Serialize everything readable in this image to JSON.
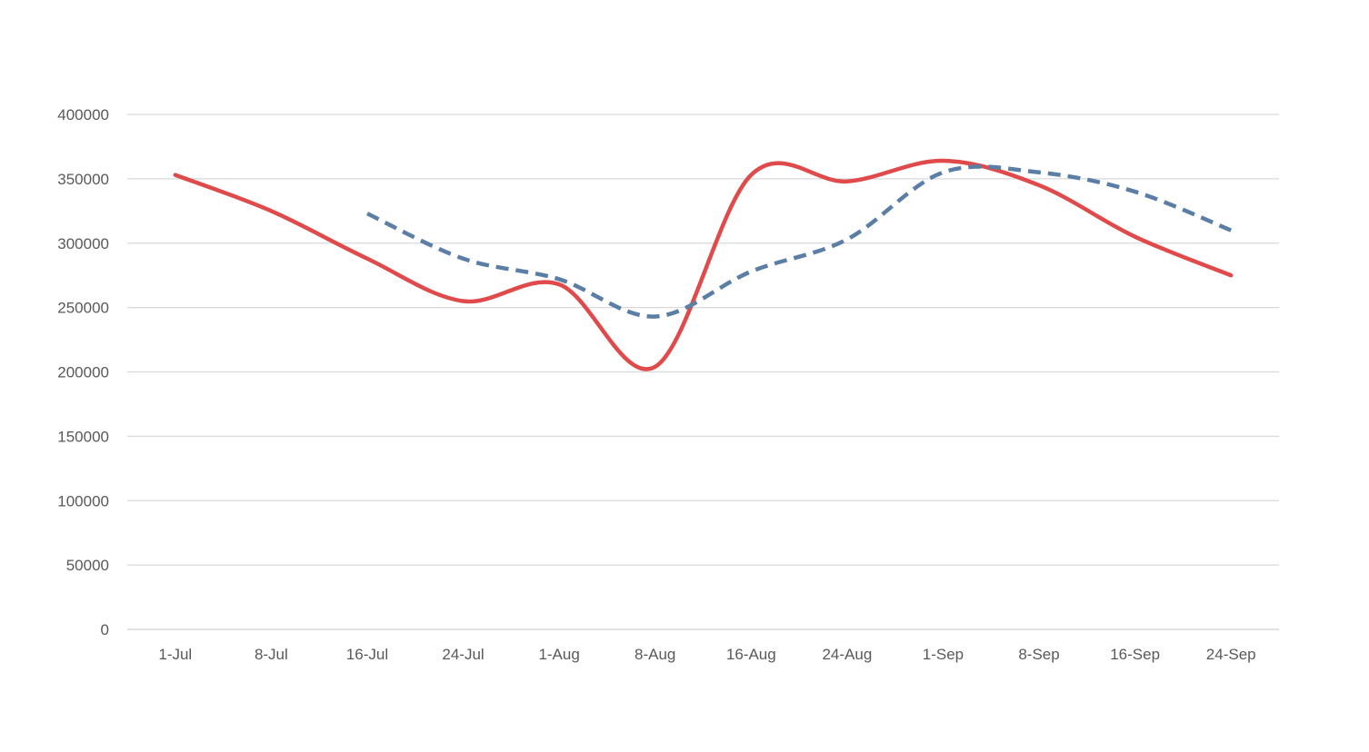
{
  "chart_data": {
    "type": "line",
    "title": "",
    "xlabel": "",
    "ylabel": "",
    "categories": [
      "1-Jul",
      "8-Jul",
      "16-Jul",
      "24-Jul",
      "1-Aug",
      "8-Aug",
      "16-Aug",
      "24-Aug",
      "1-Sep",
      "8-Sep",
      "16-Sep",
      "24-Sep"
    ],
    "y_ticks": [
      "0",
      "50000",
      "100000",
      "150000",
      "200000",
      "250000",
      "300000",
      "350000",
      "400000"
    ],
    "ylim": [
      0,
      400000
    ],
    "grid": true,
    "legend": "none",
    "series": [
      {
        "style": "solid",
        "color": "#e04a4a",
        "values": [
          353000,
          325000,
          288000,
          255000,
          268000,
          204000,
          353000,
          348000,
          364000,
          345000,
          305000,
          275000
        ]
      },
      {
        "style": "dashed",
        "color": "#5a7ea6",
        "values": [
          null,
          null,
          323000,
          288000,
          272000,
          243000,
          278000,
          303000,
          355000,
          355000,
          340000,
          310000
        ]
      }
    ]
  }
}
